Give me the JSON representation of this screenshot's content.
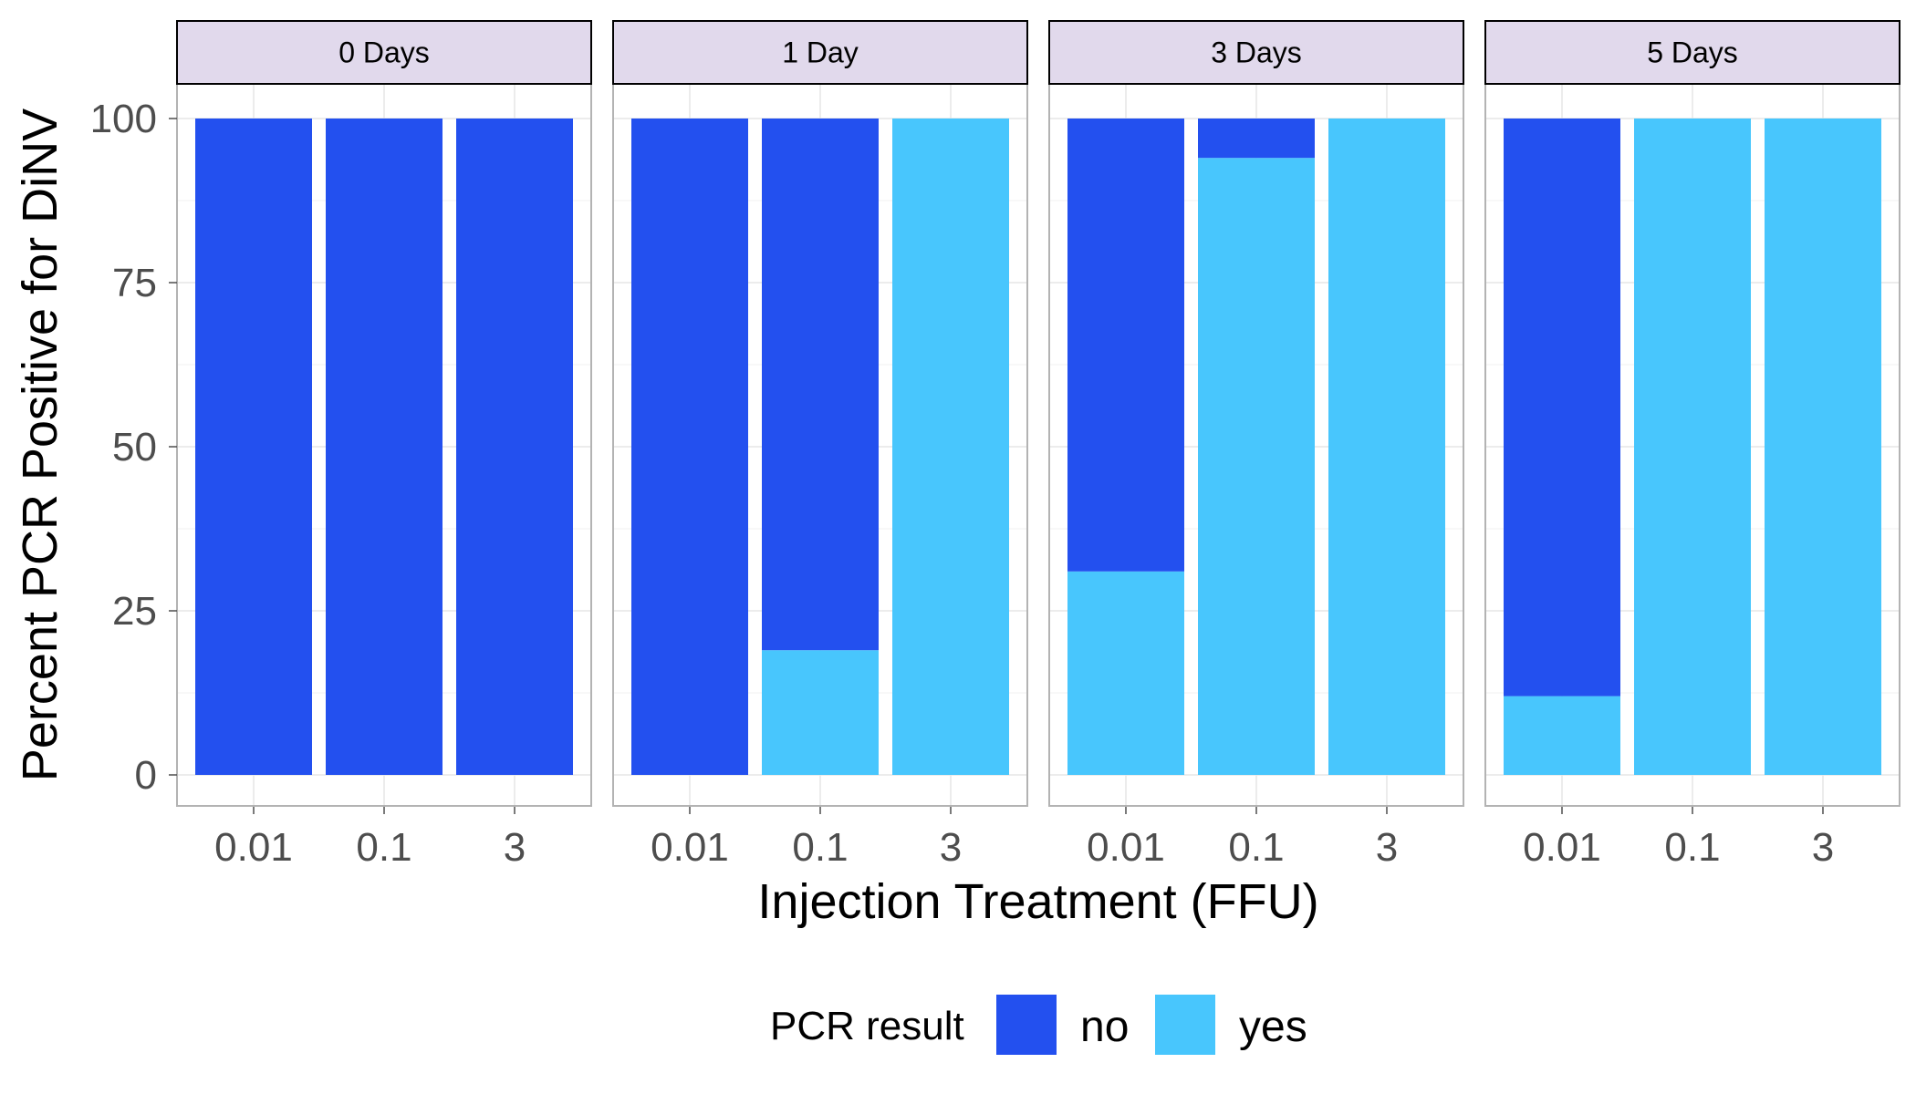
{
  "chart_data": {
    "type": "bar",
    "stacked": true,
    "xlabel": "Injection Treatment (FFU)",
    "ylabel": "Percent PCR Positive for DiNV",
    "ylim": [
      0,
      100
    ],
    "yticks": [
      "0",
      "25",
      "50",
      "75",
      "100"
    ],
    "categories": [
      "0.01",
      "0.1",
      "3"
    ],
    "grid": true,
    "facets": [
      {
        "label": "0 Days",
        "series": [
          {
            "name": "no",
            "values": [
              100,
              100,
              100
            ]
          },
          {
            "name": "yes",
            "values": [
              0,
              0,
              0
            ]
          }
        ]
      },
      {
        "label": "1 Day",
        "series": [
          {
            "name": "no",
            "values": [
              100,
              81,
              0
            ]
          },
          {
            "name": "yes",
            "values": [
              0,
              19,
              100
            ]
          }
        ]
      },
      {
        "label": "3 Days",
        "series": [
          {
            "name": "no",
            "values": [
              69,
              6,
              0
            ]
          },
          {
            "name": "yes",
            "values": [
              31,
              94,
              100
            ]
          }
        ]
      },
      {
        "label": "5 Days",
        "series": [
          {
            "name": "no",
            "values": [
              88,
              0,
              0
            ]
          },
          {
            "name": "yes",
            "values": [
              12,
              100,
              100
            ]
          }
        ]
      }
    ],
    "legend": {
      "title": "PCR result",
      "position": "bottom",
      "items": [
        {
          "name": "no",
          "color": "#2350ef"
        },
        {
          "name": "yes",
          "color": "#48c6fd"
        }
      ]
    }
  }
}
